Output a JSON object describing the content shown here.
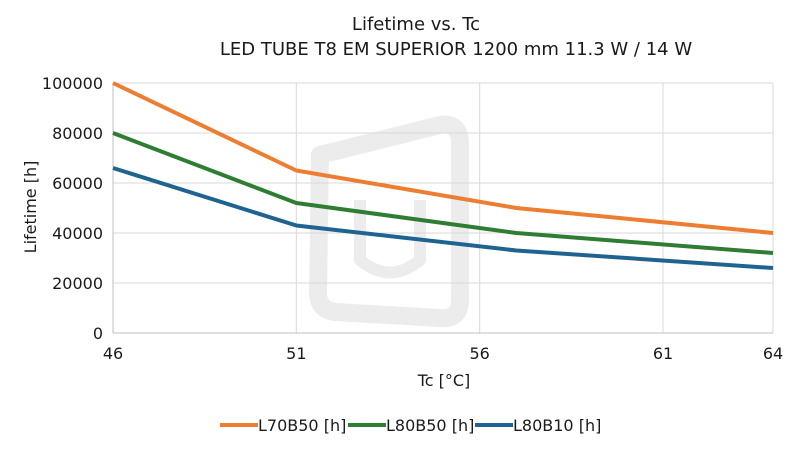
{
  "chart_data": {
    "type": "line",
    "title": "Lifetime vs. Tc",
    "subtitle": "LED TUBE T8 EM SUPERIOR 1200 mm 11.3 W / 14 W",
    "xlabel": "Tc [°C]",
    "ylabel": "Lifetime [h]",
    "xlim": [
      46,
      64
    ],
    "ylim": [
      0,
      100000
    ],
    "x_ticks": [
      "46",
      "51",
      "56",
      "61",
      "64"
    ],
    "x_tick_values": [
      46,
      51,
      56,
      61,
      64
    ],
    "y_ticks": [
      "0",
      "20000",
      "40000",
      "60000",
      "80000",
      "100000"
    ],
    "y_tick_values": [
      0,
      20000,
      40000,
      60000,
      80000,
      100000
    ],
    "grid": true,
    "legend_position": "bottom",
    "series": [
      {
        "name": "L70B50 [h]",
        "color": "#ed7d31",
        "x": [
          46,
          51,
          57,
          64
        ],
        "y": [
          100000,
          65000,
          50000,
          40000
        ]
      },
      {
        "name": "L80B50 [h]",
        "color": "#2e7d32",
        "x": [
          46,
          51,
          57,
          64
        ],
        "y": [
          80000,
          52000,
          40000,
          32000
        ]
      },
      {
        "name": "L80B10 [h]",
        "color": "#1f6391",
        "x": [
          46,
          51,
          57,
          64
        ],
        "y": [
          66000,
          43000,
          33000,
          26000
        ]
      }
    ]
  }
}
